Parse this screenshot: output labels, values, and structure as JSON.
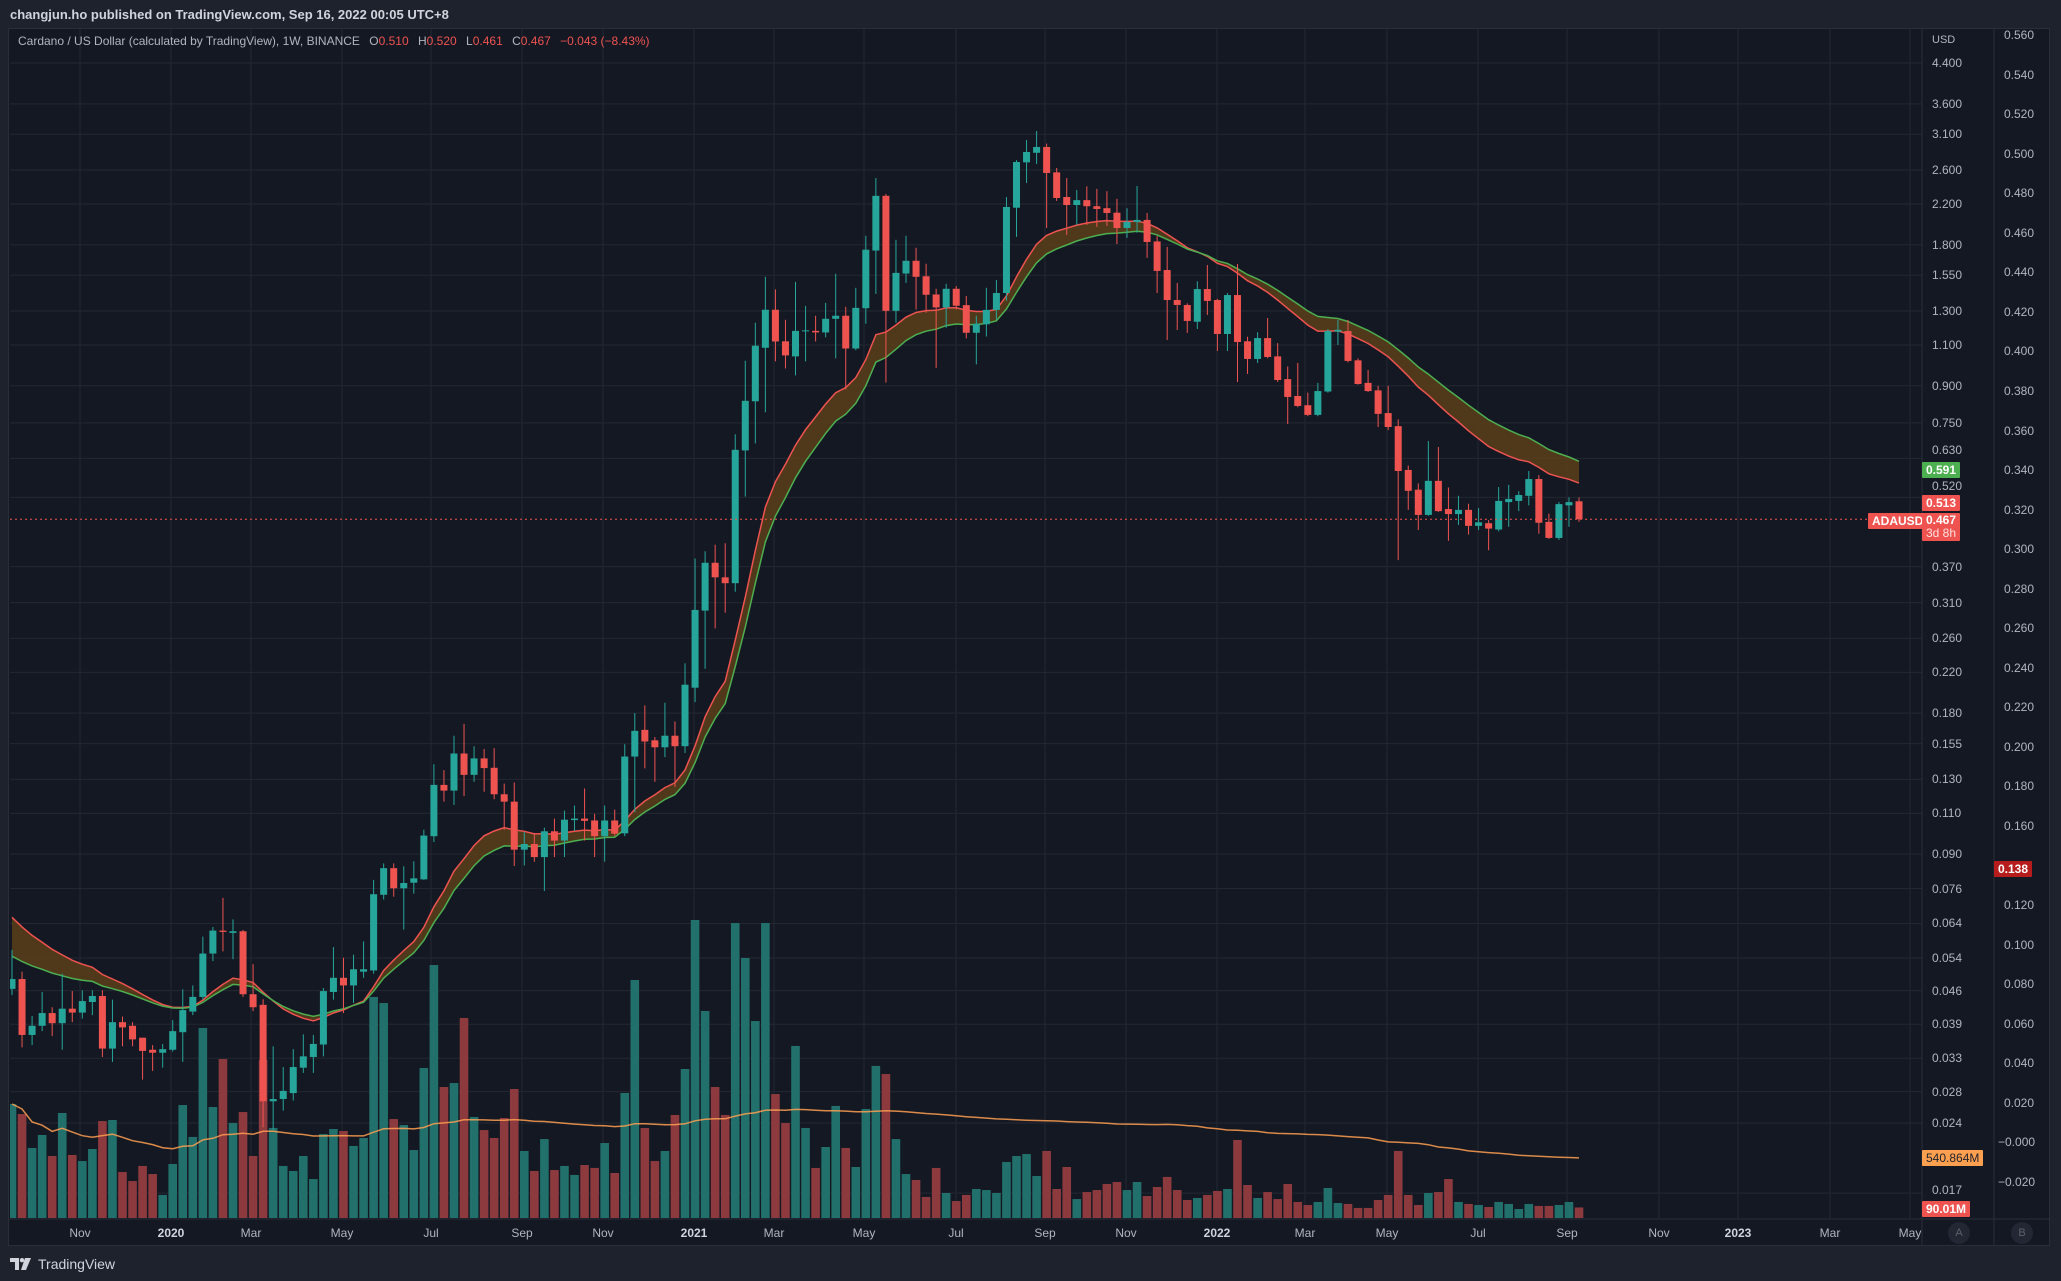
{
  "header": {
    "publish_line": "changjun.ho published on TradingView.com, Sep 16, 2022 00:05 UTC+8"
  },
  "legend": {
    "symbol": "Cardano / US Dollar (calculated by TradingView), 1W, BINANCE",
    "o_label": "O",
    "o": "0.510",
    "h_label": "H",
    "h": "0.520",
    "l_label": "L",
    "l": "0.461",
    "c_label": "C",
    "c": "0.467",
    "change": "−0.043 (−8.43%)"
  },
  "axis_a": {
    "unit": "USD",
    "scale": "log",
    "ticks": [
      "4.400",
      "3.600",
      "3.100",
      "2.600",
      "2.200",
      "1.800",
      "1.550",
      "1.300",
      "1.100",
      "0.900",
      "0.750",
      "0.630",
      "0.520",
      "0.370",
      "0.310",
      "0.260",
      "0.220",
      "0.180",
      "0.155",
      "0.130",
      "0.110",
      "0.090",
      "0.076",
      "0.064",
      "0.054",
      "0.046",
      "0.039",
      "0.033",
      "0.028",
      "0.024",
      "0.017"
    ]
  },
  "axis_b": {
    "ticks": [
      "0.560",
      "0.540",
      "0.520",
      "0.500",
      "0.480",
      "0.460",
      "0.440",
      "0.420",
      "0.400",
      "0.380",
      "0.360",
      "0.340",
      "0.320",
      "0.300",
      "0.280",
      "0.260",
      "0.240",
      "0.220",
      "0.200",
      "0.180",
      "0.160",
      "0.120",
      "0.100",
      "0.080",
      "0.060",
      "0.040",
      "0.020",
      "−0.000",
      "−0.020"
    ],
    "marker": "0.138"
  },
  "time_axis": {
    "labels": [
      "Nov",
      "2020",
      "Mar",
      "May",
      "Jul",
      "Sep",
      "Nov",
      "2021",
      "Mar",
      "May",
      "Jul",
      "Sep",
      "Nov",
      "2022",
      "Mar",
      "May",
      "Jul",
      "Sep",
      "Nov",
      "2023",
      "Mar",
      "May"
    ]
  },
  "price_labels": {
    "ma_green": "0.591",
    "ma_red": "0.513",
    "symbol_tag": "ADAUSD",
    "last_price": "0.467",
    "countdown": "3d 8h",
    "volume_ma": "540.864M",
    "volume_last": "90.01M"
  },
  "scale_buttons": [
    "A",
    "B"
  ],
  "footer": {
    "brand": "TradingView"
  },
  "colors": {
    "up": "#26a69a",
    "down": "#ef5350",
    "volume_up": "#22706b",
    "volume_down": "#8c3a3e",
    "ma_green": "#4caf50",
    "ma_red": "#ef5350",
    "ribbon_fill": "#5a3f1a",
    "volume_ma": "#ff9f50",
    "background": "#141823",
    "grid": "#232733"
  },
  "chart_data": {
    "type": "candlestick",
    "interval": "1W",
    "y_scale": "log",
    "first_week": "Sep 16, 2019",
    "last_week": "Sep 12, 2022",
    "ohlc_columns": [
      "open",
      "high",
      "low",
      "close"
    ],
    "ohlc": [
      [
        0.0464,
        0.0562,
        0.045,
        0.0487
      ],
      [
        0.0487,
        0.0505,
        0.0348,
        0.037
      ],
      [
        0.037,
        0.0406,
        0.0352,
        0.0387
      ],
      [
        0.0387,
        0.0457,
        0.0377,
        0.0412
      ],
      [
        0.0412,
        0.0424,
        0.0368,
        0.0392
      ],
      [
        0.0392,
        0.05,
        0.0344,
        0.0421
      ],
      [
        0.0421,
        0.0459,
        0.0394,
        0.0413
      ],
      [
        0.0413,
        0.0461,
        0.0401,
        0.0437
      ],
      [
        0.0435,
        0.0461,
        0.0408,
        0.0448
      ],
      [
        0.0448,
        0.0461,
        0.0332,
        0.0346
      ],
      [
        0.0346,
        0.044,
        0.0324,
        0.0394
      ],
      [
        0.0394,
        0.0405,
        0.035,
        0.0384
      ],
      [
        0.0387,
        0.0394,
        0.035,
        0.0362
      ],
      [
        0.0365,
        0.0365,
        0.0297,
        0.0342
      ],
      [
        0.0344,
        0.0352,
        0.031,
        0.0339
      ],
      [
        0.0339,
        0.0354,
        0.0315,
        0.0345
      ],
      [
        0.0344,
        0.0398,
        0.0341,
        0.0377
      ],
      [
        0.0375,
        0.0463,
        0.0324,
        0.0418
      ],
      [
        0.0415,
        0.0472,
        0.0408,
        0.0446
      ],
      [
        0.0446,
        0.06,
        0.044,
        0.0552
      ],
      [
        0.0552,
        0.0629,
        0.0532,
        0.0618
      ],
      [
        0.0618,
        0.0726,
        0.0558,
        0.0614
      ],
      [
        0.0611,
        0.0653,
        0.0537,
        0.0616
      ],
      [
        0.0616,
        0.062,
        0.0446,
        0.0452
      ],
      [
        0.0452,
        0.0524,
        0.0416,
        0.0424
      ],
      [
        0.0429,
        0.0441,
        0.0235,
        0.0267
      ],
      [
        0.0267,
        0.035,
        0.0232,
        0.027
      ],
      [
        0.027,
        0.0316,
        0.0255,
        0.0281
      ],
      [
        0.0278,
        0.0345,
        0.0268,
        0.0316
      ],
      [
        0.0315,
        0.0371,
        0.0307,
        0.0333
      ],
      [
        0.0332,
        0.037,
        0.0307,
        0.0354
      ],
      [
        0.0353,
        0.0466,
        0.0333,
        0.0459
      ],
      [
        0.0457,
        0.057,
        0.044,
        0.049
      ],
      [
        0.049,
        0.0541,
        0.0412,
        0.0472
      ],
      [
        0.0472,
        0.0549,
        0.0433,
        0.0511
      ],
      [
        0.0505,
        0.0586,
        0.049,
        0.0511
      ],
      [
        0.0508,
        0.0793,
        0.05,
        0.0739
      ],
      [
        0.0737,
        0.086,
        0.072,
        0.084
      ],
      [
        0.084,
        0.086,
        0.073,
        0.0761
      ],
      [
        0.0761,
        0.0848,
        0.0621,
        0.0781
      ],
      [
        0.0782,
        0.0869,
        0.0741,
        0.0799
      ],
      [
        0.0795,
        0.1015,
        0.0793,
        0.0986
      ],
      [
        0.0983,
        0.14,
        0.0955,
        0.1265
      ],
      [
        0.1265,
        0.136,
        0.1165,
        0.123
      ],
      [
        0.123,
        0.1611,
        0.1146,
        0.1476
      ],
      [
        0.1476,
        0.1708,
        0.1197,
        0.1329
      ],
      [
        0.1329,
        0.153,
        0.1284,
        0.1441
      ],
      [
        0.1441,
        0.1509,
        0.1223,
        0.1374
      ],
      [
        0.1376,
        0.1515,
        0.1179,
        0.1208
      ],
      [
        0.1208,
        0.1273,
        0.1014,
        0.1165
      ],
      [
        0.1165,
        0.128,
        0.0849,
        0.092
      ],
      [
        0.092,
        0.1003,
        0.0851,
        0.0946
      ],
      [
        0.0946,
        0.0999,
        0.0867,
        0.0887
      ],
      [
        0.0887,
        0.1025,
        0.0751,
        0.1007
      ],
      [
        0.1007,
        0.1072,
        0.0887,
        0.0962
      ],
      [
        0.0962,
        0.1115,
        0.0887,
        0.1066
      ],
      [
        0.1064,
        0.1143,
        0.101,
        0.1072
      ],
      [
        0.1072,
        0.1243,
        0.0962,
        0.106
      ],
      [
        0.1062,
        0.1097,
        0.0887,
        0.0983
      ],
      [
        0.0983,
        0.1143,
        0.0867,
        0.1062
      ],
      [
        0.1062,
        0.112,
        0.0985,
        0.0995
      ],
      [
        0.0997,
        0.1545,
        0.0983,
        0.1454
      ],
      [
        0.1454,
        0.18,
        0.1106,
        0.165
      ],
      [
        0.1658,
        0.187,
        0.1372,
        0.1566
      ],
      [
        0.1575,
        0.16,
        0.1284,
        0.1522
      ],
      [
        0.1522,
        0.1895,
        0.145,
        0.1611
      ],
      [
        0.1611,
        0.1728,
        0.1253,
        0.153
      ],
      [
        0.153,
        0.23,
        0.148,
        0.207
      ],
      [
        0.204,
        0.385,
        0.19,
        0.299
      ],
      [
        0.298,
        0.399,
        0.224,
        0.377
      ],
      [
        0.377,
        0.412,
        0.273,
        0.351
      ],
      [
        0.351,
        0.415,
        0.295,
        0.341
      ],
      [
        0.341,
        0.709,
        0.327,
        0.657
      ],
      [
        0.655,
        1.018,
        0.522,
        0.836
      ],
      [
        0.834,
        1.227,
        0.678,
        1.096
      ],
      [
        1.085,
        1.538,
        0.79,
        1.308
      ],
      [
        1.308,
        1.446,
        1.015,
        1.119
      ],
      [
        1.12,
        1.245,
        0.98,
        1.045
      ],
      [
        1.04,
        1.5,
        0.947,
        1.179
      ],
      [
        1.178,
        1.333,
        1.015,
        1.182
      ],
      [
        1.179,
        1.27,
        1.119,
        1.17
      ],
      [
        1.17,
        1.353,
        1.142,
        1.251
      ],
      [
        1.251,
        1.561,
        1.03,
        1.27
      ],
      [
        1.27,
        1.327,
        0.884,
        1.081
      ],
      [
        1.081,
        1.457,
        1.072,
        1.32
      ],
      [
        1.318,
        1.882,
        1.221,
        1.757
      ],
      [
        1.75,
        2.5,
        1.414,
        2.29
      ],
      [
        2.29,
        2.31,
        0.914,
        1.301
      ],
      [
        1.301,
        1.845,
        1.227,
        1.568
      ],
      [
        1.563,
        1.882,
        1.493,
        1.664
      ],
      [
        1.664,
        1.774,
        1.31,
        1.538
      ],
      [
        1.542,
        1.64,
        1.289,
        1.408
      ],
      [
        1.41,
        1.45,
        0.983,
        1.323
      ],
      [
        1.323,
        1.486,
        1.197,
        1.45
      ],
      [
        1.45,
        1.47,
        1.31,
        1.334
      ],
      [
        1.338,
        1.4,
        1.136,
        1.168
      ],
      [
        1.168,
        1.27,
        1.0,
        1.221
      ],
      [
        1.218,
        1.457,
        1.147,
        1.307
      ],
      [
        1.307,
        1.514,
        1.244,
        1.42
      ],
      [
        1.42,
        2.277,
        1.366,
        2.168
      ],
      [
        2.16,
        2.73,
        1.871,
        2.705
      ],
      [
        2.7,
        3.013,
        2.44,
        2.841
      ],
      [
        2.83,
        3.15,
        2.678,
        2.912
      ],
      [
        2.912,
        2.96,
        1.955,
        2.562
      ],
      [
        2.57,
        2.626,
        2.233,
        2.266
      ],
      [
        2.277,
        2.5,
        1.89,
        2.189
      ],
      [
        2.189,
        2.357,
        1.985,
        2.242
      ],
      [
        2.242,
        2.4,
        1.985,
        2.176
      ],
      [
        2.176,
        2.37,
        1.966,
        2.147
      ],
      [
        2.155,
        2.343,
        1.975,
        2.105
      ],
      [
        2.108,
        2.257,
        1.807,
        1.955
      ],
      [
        1.955,
        2.155,
        1.862,
        2.014
      ],
      [
        2.014,
        2.404,
        1.91,
        2.034
      ],
      [
        2.034,
        2.105,
        1.688,
        1.825
      ],
      [
        1.83,
        1.88,
        1.42,
        1.583
      ],
      [
        1.59,
        1.781,
        1.127,
        1.372
      ],
      [
        1.372,
        1.492,
        1.184,
        1.339
      ],
      [
        1.339,
        1.35,
        1.167,
        1.238
      ],
      [
        1.233,
        1.504,
        1.19,
        1.448
      ],
      [
        1.448,
        1.63,
        1.275,
        1.366
      ],
      [
        1.372,
        1.38,
        1.068,
        1.161
      ],
      [
        1.161,
        1.42,
        1.068,
        1.406
      ],
      [
        1.406,
        1.638,
        0.917,
        1.116
      ],
      [
        1.12,
        1.146,
        0.954,
        1.027
      ],
      [
        1.027,
        1.171,
        1.007,
        1.138
      ],
      [
        1.138,
        1.256,
        1.03,
        1.037
      ],
      [
        1.04,
        1.11,
        0.917,
        0.926
      ],
      [
        0.93,
        0.99,
        0.746,
        0.852
      ],
      [
        0.856,
        1.007,
        0.81,
        0.815
      ],
      [
        0.818,
        0.87,
        0.775,
        0.78
      ],
      [
        0.78,
        0.913,
        0.775,
        0.877
      ],
      [
        0.875,
        1.19,
        0.87,
        1.178
      ],
      [
        1.175,
        1.244,
        1.1,
        1.185
      ],
      [
        1.178,
        1.244,
        1.01,
        1.017
      ],
      [
        1.02,
        1.03,
        0.905,
        0.908
      ],
      [
        0.913,
        0.973,
        0.873,
        0.877
      ],
      [
        0.88,
        0.9,
        0.735,
        0.784
      ],
      [
        0.787,
        0.9,
        0.724,
        0.735
      ],
      [
        0.738,
        0.763,
        0.382,
        0.592
      ],
      [
        0.595,
        0.608,
        0.489,
        0.537
      ],
      [
        0.54,
        0.557,
        0.443,
        0.477
      ],
      [
        0.477,
        0.686,
        0.475,
        0.564
      ],
      [
        0.564,
        0.666,
        0.484,
        0.486
      ],
      [
        0.491,
        0.546,
        0.42,
        0.479
      ],
      [
        0.479,
        0.524,
        0.454,
        0.489
      ],
      [
        0.489,
        0.504,
        0.433,
        0.452
      ],
      [
        0.452,
        0.4935,
        0.443,
        0.46
      ],
      [
        0.458,
        0.465,
        0.401,
        0.446
      ],
      [
        0.444,
        0.547,
        0.44,
        0.511
      ],
      [
        0.508,
        0.553,
        0.45,
        0.516
      ],
      [
        0.511,
        0.536,
        0.486,
        0.526
      ],
      [
        0.524,
        0.592,
        0.5,
        0.569
      ],
      [
        0.569,
        0.58,
        0.435,
        0.459
      ],
      [
        0.461,
        0.48,
        0.424,
        0.426
      ],
      [
        0.426,
        0.508,
        0.422,
        0.503
      ],
      [
        0.5,
        0.52,
        0.45,
        0.508
      ],
      [
        0.51,
        0.52,
        0.461,
        0.467
      ]
    ],
    "volume_unit": "M",
    "volume": [
      975,
      889,
      599,
      710,
      530,
      898,
      539,
      487,
      590,
      829,
      838,
      393,
      316,
      445,
      376,
      197,
      462,
      966,
      693,
      1625,
      949,
      1359,
      812,
      906,
      530,
      1351,
      770,
      445,
      402,
      530,
      333,
      718,
      761,
      744,
      616,
      684,
      1890,
      1838,
      846,
      795,
      581,
      1283,
      2163,
      1120,
      1154,
      1710,
      864,
      752,
      684,
      855,
      1103,
      573,
      402,
      675,
      410,
      445,
      368,
      453,
      428,
      641,
      385,
      1069,
      2035,
      770,
      487,
      573,
      881,
      1274,
      2548,
      1770,
      1120,
      881,
      2522,
      2223,
      1684,
      2522,
      1060,
      812,
      1471,
      770,
      428,
      607,
      958,
      599,
      436,
      932,
      1300,
      1231,
      675,
      376,
      325,
      180,
      428,
      214,
      145,
      197,
      248,
      239,
      214,
      479,
      530,
      547,
      359,
      573,
      248,
      436,
      162,
      222,
      239,
      291,
      308,
      239,
      308,
      188,
      265,
      351,
      239,
      154,
      171,
      197,
      231,
      248,
      667,
      282,
      171,
      222,
      162,
      291,
      137,
      111,
      137,
      257,
      128,
      120,
      86,
      86,
      154,
      197,
      573,
      197,
      111,
      214,
      222,
      333,
      137,
      120,
      111,
      94,
      137,
      120,
      77,
      120,
      103,
      103,
      111,
      137,
      90.01
    ],
    "volume_ma_last": 540.864,
    "ma_green_last": 0.591,
    "ma_red_last": 0.513,
    "last_price": 0.467,
    "y_range": [
      0.017,
      4.4
    ],
    "secondary_axis_range": [
      -0.02,
      0.56
    ],
    "grid": true
  }
}
